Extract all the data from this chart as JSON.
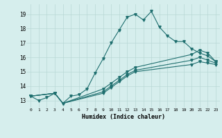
{
  "xlabel": "Humidex (Indice chaleur)",
  "background_color": "#d6eeed",
  "grid_color": "#b8d8d5",
  "line_color": "#1f6f6f",
  "xlim": [
    -0.5,
    23.5
  ],
  "ylim": [
    12.5,
    19.7
  ],
  "yticks": [
    13,
    14,
    15,
    16,
    17,
    18,
    19
  ],
  "xticks": [
    0,
    1,
    2,
    3,
    4,
    5,
    6,
    7,
    8,
    9,
    10,
    11,
    12,
    13,
    14,
    15,
    16,
    17,
    18,
    19,
    20,
    21,
    22,
    23
  ],
  "line1_x": [
    0,
    1,
    2,
    3,
    4,
    5,
    6,
    7,
    8,
    9,
    10,
    11,
    12,
    13,
    14,
    15,
    16,
    17,
    18,
    19,
    20,
    21,
    22,
    23
  ],
  "line1_y": [
    13.3,
    13.0,
    13.2,
    13.5,
    12.8,
    13.3,
    13.4,
    13.8,
    14.9,
    15.9,
    17.0,
    17.9,
    18.8,
    19.0,
    18.6,
    19.2,
    18.1,
    17.5,
    17.1,
    17.1,
    16.6,
    16.3,
    16.1,
    15.7
  ],
  "line2_x": [
    0,
    3,
    4,
    9,
    10,
    11,
    12,
    13,
    20,
    21,
    22,
    23
  ],
  "line2_y": [
    13.3,
    13.5,
    12.8,
    13.8,
    14.2,
    14.6,
    15.0,
    15.3,
    16.2,
    16.5,
    16.3,
    15.7
  ],
  "line3_x": [
    0,
    3,
    4,
    9,
    10,
    11,
    12,
    13,
    20,
    21,
    22,
    23
  ],
  "line3_y": [
    13.3,
    13.5,
    12.8,
    13.6,
    14.0,
    14.4,
    14.8,
    15.1,
    15.8,
    16.0,
    15.8,
    15.6
  ],
  "line4_x": [
    0,
    3,
    4,
    9,
    10,
    11,
    12,
    13,
    20,
    21,
    22,
    23
  ],
  "line4_y": [
    13.3,
    13.5,
    12.8,
    13.5,
    13.9,
    14.3,
    14.7,
    15.0,
    15.5,
    15.7,
    15.6,
    15.5
  ]
}
